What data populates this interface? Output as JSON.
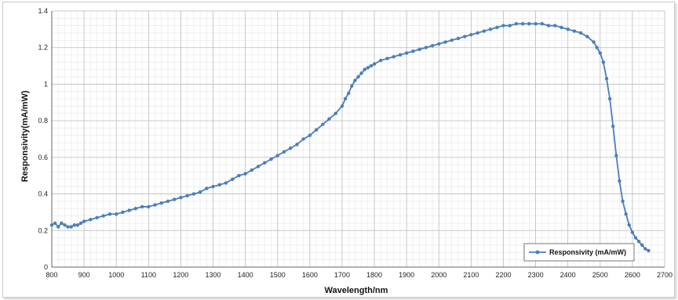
{
  "chart_data": {
    "type": "line",
    "title": "",
    "xlabel": "Wavelength/nm",
    "ylabel": "Responsivity(mA/mW)",
    "xlim": [
      800,
      2700
    ],
    "ylim": [
      0,
      1.4
    ],
    "x_ticks": [
      "800",
      "900",
      "1000",
      "1100",
      "1200",
      "1300",
      "1400",
      "1500",
      "1600",
      "1700",
      "1800",
      "1900",
      "2000",
      "2100",
      "2200",
      "2300",
      "2400",
      "2500",
      "2600",
      "2700"
    ],
    "y_ticks": [
      "0",
      "0.2",
      "0.4",
      "0.6",
      "0.8",
      "1",
      "1.2",
      "1.4"
    ],
    "grid": "on",
    "legend_position": "bottom-right",
    "series": [
      {
        "name": "Responsivity (mA/mW)",
        "color": "#4a7ebb",
        "x": [
          800,
          810,
          820,
          830,
          840,
          850,
          860,
          870,
          880,
          890,
          900,
          920,
          940,
          960,
          980,
          1000,
          1020,
          1040,
          1060,
          1080,
          1100,
          1120,
          1140,
          1160,
          1180,
          1200,
          1220,
          1240,
          1260,
          1280,
          1300,
          1320,
          1340,
          1360,
          1380,
          1400,
          1420,
          1440,
          1460,
          1480,
          1500,
          1520,
          1540,
          1560,
          1580,
          1600,
          1620,
          1640,
          1660,
          1680,
          1700,
          1710,
          1720,
          1730,
          1740,
          1750,
          1760,
          1770,
          1780,
          1790,
          1800,
          1820,
          1840,
          1860,
          1880,
          1900,
          1920,
          1940,
          1960,
          1980,
          2000,
          2020,
          2040,
          2060,
          2080,
          2100,
          2120,
          2140,
          2160,
          2180,
          2200,
          2220,
          2240,
          2260,
          2280,
          2300,
          2320,
          2340,
          2360,
          2380,
          2400,
          2420,
          2440,
          2460,
          2480,
          2490,
          2500,
          2510,
          2520,
          2530,
          2540,
          2550,
          2560,
          2570,
          2580,
          2590,
          2600,
          2610,
          2620,
          2630,
          2640,
          2650
        ],
        "y": [
          0.23,
          0.24,
          0.22,
          0.24,
          0.23,
          0.22,
          0.22,
          0.23,
          0.23,
          0.24,
          0.25,
          0.26,
          0.27,
          0.28,
          0.29,
          0.29,
          0.3,
          0.31,
          0.32,
          0.33,
          0.33,
          0.34,
          0.35,
          0.36,
          0.37,
          0.38,
          0.39,
          0.4,
          0.41,
          0.43,
          0.44,
          0.45,
          0.46,
          0.48,
          0.5,
          0.51,
          0.53,
          0.55,
          0.57,
          0.59,
          0.61,
          0.63,
          0.65,
          0.67,
          0.7,
          0.72,
          0.75,
          0.78,
          0.81,
          0.84,
          0.88,
          0.92,
          0.95,
          0.99,
          1.02,
          1.04,
          1.06,
          1.08,
          1.09,
          1.1,
          1.11,
          1.13,
          1.14,
          1.15,
          1.16,
          1.17,
          1.18,
          1.19,
          1.2,
          1.21,
          1.22,
          1.23,
          1.24,
          1.25,
          1.26,
          1.27,
          1.28,
          1.29,
          1.3,
          1.31,
          1.32,
          1.32,
          1.33,
          1.33,
          1.33,
          1.33,
          1.33,
          1.32,
          1.32,
          1.31,
          1.3,
          1.29,
          1.28,
          1.26,
          1.23,
          1.2,
          1.17,
          1.12,
          1.03,
          0.92,
          0.77,
          0.61,
          0.47,
          0.36,
          0.29,
          0.23,
          0.19,
          0.16,
          0.14,
          0.12,
          0.1,
          0.09
        ]
      }
    ]
  }
}
